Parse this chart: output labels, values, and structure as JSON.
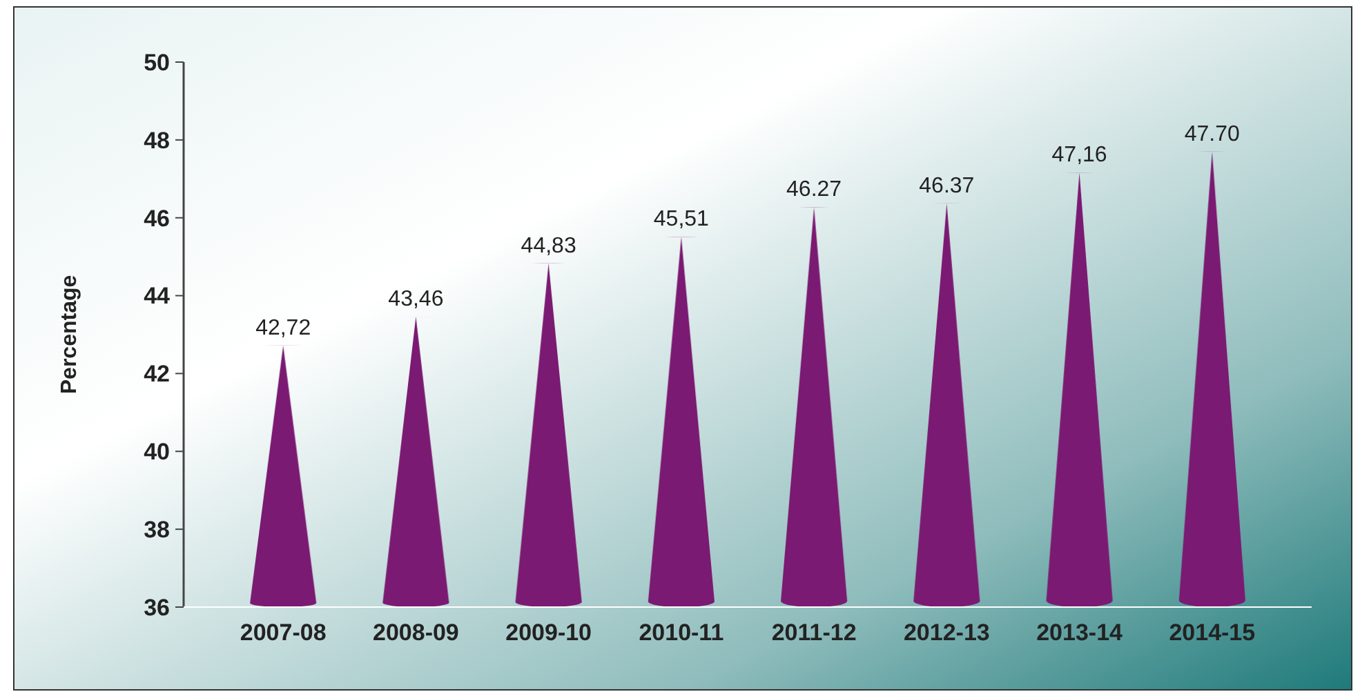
{
  "chart_data": {
    "type": "bar",
    "ylabel": "Percentage",
    "categories": [
      "2007-08",
      "2008-09",
      "2009-10",
      "2010-11",
      "2011-12",
      "2012-13",
      "2013-14",
      "2014-15"
    ],
    "values": [
      42.72,
      43.46,
      44.83,
      45.51,
      46.27,
      46.37,
      47.16,
      47.7
    ],
    "value_labels": [
      "42,72",
      "43,46",
      "44,83",
      "45,51",
      "46.27",
      "46.37",
      "47,16",
      "47.70"
    ],
    "color": "#7b1a72",
    "ylim": [
      36,
      50
    ],
    "yticks": [
      36,
      38,
      40,
      42,
      44,
      46,
      48,
      50
    ],
    "grid": false
  }
}
